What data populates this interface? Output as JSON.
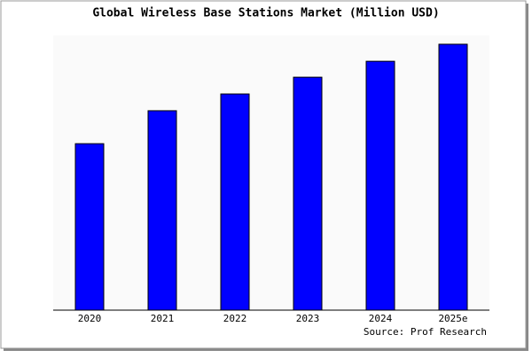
{
  "chart_data": {
    "type": "bar",
    "title": "Global Wireless Base Stations Market (Million USD)",
    "categories": [
      "2020",
      "2021",
      "2022",
      "2023",
      "2024",
      "2025e"
    ],
    "values": [
      60.6,
      72.6,
      78.7,
      84.8,
      90.6,
      96.8
    ],
    "color": "#0000ff",
    "ylim": [
      0,
      100
    ],
    "source": "Source: Prof Research"
  }
}
